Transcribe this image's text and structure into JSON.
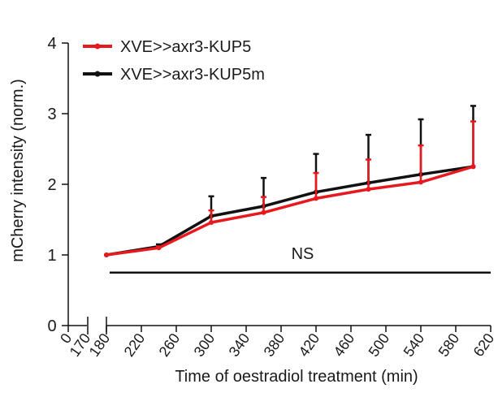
{
  "chart_data": {
    "type": "line",
    "title": "",
    "xlabel": "Time of oestradiol treatment (min)",
    "ylabel": "mCherry intensity (norm.)",
    "ylim": [
      0,
      4
    ],
    "yticks": [
      0,
      1,
      2,
      3,
      4
    ],
    "xlim": [
      180,
      620
    ],
    "x_break_ticks": [
      "0",
      "170"
    ],
    "xticks": [
      180,
      220,
      260,
      300,
      340,
      380,
      420,
      460,
      500,
      540,
      580,
      620
    ],
    "x": [
      180,
      240,
      300,
      360,
      420,
      480,
      540,
      600
    ],
    "series": [
      {
        "name": "XVE>>axr3-KUP5m",
        "color": "#111111",
        "values": [
          1.0,
          1.12,
          1.55,
          1.69,
          1.89,
          2.02,
          2.14,
          2.25
        ],
        "error": [
          0.0,
          0.03,
          0.28,
          0.4,
          0.54,
          0.68,
          0.78,
          0.86
        ]
      },
      {
        "name": "XVE>>axr3-KUP5",
        "color": "#e8191e",
        "values": [
          1.0,
          1.1,
          1.46,
          1.6,
          1.8,
          1.93,
          2.03,
          2.25
        ],
        "error": [
          0.0,
          0.02,
          0.17,
          0.22,
          0.36,
          0.42,
          0.52,
          0.64
        ]
      }
    ],
    "legend": {
      "position": "top-left",
      "entries": [
        {
          "label": "XVE>>axr3-KUP5",
          "color": "#e8191e"
        },
        {
          "label": "XVE>>axr3-KUP5m",
          "color": "#111111"
        }
      ]
    },
    "annotations": [
      {
        "text": "NS",
        "y": 0.75,
        "x_start": 180,
        "x_end": 620
      }
    ]
  }
}
